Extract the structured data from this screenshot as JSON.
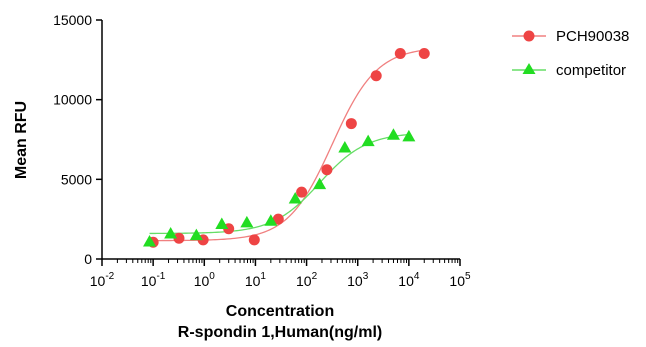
{
  "chart_data": {
    "type": "scatter",
    "title": "",
    "xlabel": "Concentration",
    "xlabel2": "R-spondin 1,Human(ng/ml)",
    "ylabel": "Mean RFU",
    "xscale": "log10",
    "xlim": [
      0.01,
      100000
    ],
    "ylim": [
      0,
      15000
    ],
    "xticks": [
      {
        "base": "10",
        "exp": "-2"
      },
      {
        "base": "10",
        "exp": "-1"
      },
      {
        "base": "10",
        "exp": "0"
      },
      {
        "base": "10",
        "exp": "1"
      },
      {
        "base": "10",
        "exp": "2"
      },
      {
        "base": "10",
        "exp": "3"
      },
      {
        "base": "10",
        "exp": "4"
      },
      {
        "base": "10",
        "exp": "5"
      }
    ],
    "yticks": [
      "0",
      "5000",
      "10000",
      "15000"
    ],
    "legend_position": "top-right",
    "series": [
      {
        "name": "PCH90038",
        "marker": "circle",
        "color": "#ee4444",
        "line_color": "#f08080",
        "x": [
          0.1,
          0.32,
          0.95,
          3,
          9.5,
          28,
          80,
          250,
          750,
          2300,
          6800,
          20000
        ],
        "y": [
          1050,
          1300,
          1200,
          1900,
          1200,
          2500,
          4200,
          5600,
          8500,
          11500,
          12900,
          12900
        ],
        "fit": {
          "bottom": 1150,
          "top": 13300,
          "ec50": 320,
          "hill": 1.0
        }
      },
      {
        "name": "competitor",
        "marker": "triangle",
        "color": "#22dd22",
        "line_color": "#66dd66",
        "x": [
          0.085,
          0.22,
          0.7,
          2.2,
          6.8,
          20,
          60,
          180,
          560,
          1600,
          5000,
          10000
        ],
        "y": [
          1100,
          1600,
          1500,
          2200,
          2300,
          2400,
          3800,
          4700,
          7000,
          7400,
          7800,
          7700
        ],
        "fit": {
          "bottom": 1600,
          "top": 7950,
          "ec50": 180,
          "hill": 0.95
        }
      }
    ]
  }
}
